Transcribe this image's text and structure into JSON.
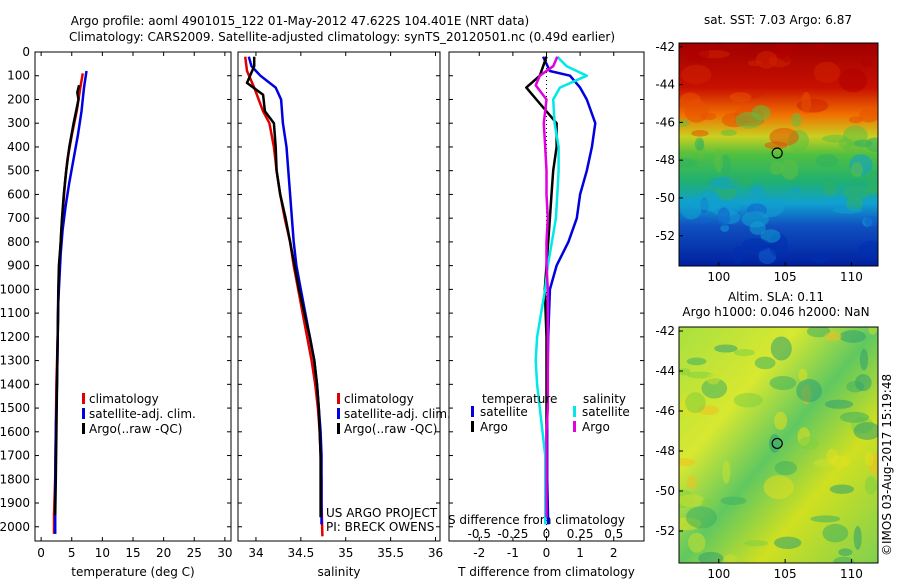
{
  "title": {
    "line1": "Argo profile: aoml 4901015_122 01-May-2012 47.622S 104.401E (NRT data)",
    "line2": "Climatology: CARS2009. Satellite-adjusted climatology: synTS_20120501.nc (0.49d earlier)"
  },
  "colors": {
    "red": "#e00000",
    "blue": "#0000e0",
    "black": "#000000",
    "cyan": "#00e8e8",
    "magenta": "#e000e0"
  },
  "chart_data": [
    {
      "id": "temperature",
      "type": "line",
      "xlabel": "temperature (deg C)",
      "ylabel": "",
      "xlim": [
        -1,
        31
      ],
      "ylim": [
        2060,
        0
      ],
      "xticks": [
        0,
        5,
        10,
        15,
        20,
        25,
        30
      ],
      "yticks": [
        0,
        100,
        200,
        300,
        400,
        500,
        600,
        700,
        800,
        900,
        1000,
        1100,
        1200,
        1300,
        1400,
        1500,
        1600,
        1700,
        1800,
        1900,
        2000
      ],
      "series": [
        {
          "name": "climatology",
          "color": "red",
          "points": [
            [
              6.8,
              90
            ],
            [
              6.4,
              150
            ],
            [
              5.8,
              250
            ],
            [
              5.0,
              350
            ],
            [
              4.3,
              450
            ],
            [
              3.9,
              550
            ],
            [
              3.6,
              650
            ],
            [
              3.3,
              750
            ],
            [
              3.1,
              850
            ],
            [
              2.9,
              950
            ],
            [
              2.8,
              1050
            ],
            [
              2.7,
              1200
            ],
            [
              2.5,
              1400
            ],
            [
              2.4,
              1600
            ],
            [
              2.3,
              1800
            ],
            [
              2.1,
              1950
            ],
            [
              2.1,
              2030
            ]
          ]
        },
        {
          "name": "satellite-adj. clim.",
          "color": "blue",
          "points": [
            [
              7.4,
              80
            ],
            [
              7.0,
              150
            ],
            [
              6.6,
              250
            ],
            [
              6.0,
              350
            ],
            [
              5.3,
              450
            ],
            [
              4.6,
              550
            ],
            [
              4.0,
              650
            ],
            [
              3.5,
              750
            ],
            [
              3.2,
              850
            ],
            [
              3.0,
              950
            ],
            [
              2.8,
              1050
            ],
            [
              2.7,
              1200
            ],
            [
              2.6,
              1400
            ],
            [
              2.4,
              1600
            ],
            [
              2.3,
              1800
            ],
            [
              2.3,
              1950
            ],
            [
              2.3,
              2030
            ]
          ]
        },
        {
          "name": "Argo(..raw -QC)",
          "color": "black",
          "points": [
            [
              6.2,
              140
            ],
            [
              5.9,
              170
            ],
            [
              6.1,
              200
            ],
            [
              5.3,
              300
            ],
            [
              4.6,
              400
            ],
            [
              4.1,
              500
            ],
            [
              3.7,
              600
            ],
            [
              3.4,
              700
            ],
            [
              3.2,
              800
            ],
            [
              2.9,
              900
            ],
            [
              2.8,
              1000
            ],
            [
              2.7,
              1200
            ],
            [
              2.6,
              1400
            ],
            [
              2.5,
              1600
            ],
            [
              2.4,
              1800
            ],
            [
              2.3,
              1950
            ]
          ]
        }
      ],
      "legend": [
        "climatology",
        "satellite-adj. clim.",
        "Argo(..raw -QC)"
      ]
    },
    {
      "id": "salinity",
      "type": "line",
      "xlabel": "salinity",
      "xlim": [
        33.8,
        36.05
      ],
      "ylim": [
        2060,
        0
      ],
      "xticks": [
        34,
        34.5,
        35,
        35.5,
        36
      ],
      "series": [
        {
          "name": "climatology",
          "color": "red",
          "points": [
            [
              33.88,
              20
            ],
            [
              33.9,
              80
            ],
            [
              33.98,
              150
            ],
            [
              34.08,
              250
            ],
            [
              34.15,
              300
            ],
            [
              34.2,
              400
            ],
            [
              34.23,
              500
            ],
            [
              34.27,
              600
            ],
            [
              34.32,
              700
            ],
            [
              34.38,
              800
            ],
            [
              34.42,
              900
            ],
            [
              34.47,
              1000
            ],
            [
              34.52,
              1100
            ],
            [
              34.57,
              1200
            ],
            [
              34.62,
              1300
            ],
            [
              34.66,
              1400
            ],
            [
              34.69,
              1500
            ],
            [
              34.71,
              1600
            ],
            [
              34.72,
              1700
            ],
            [
              34.73,
              1800
            ],
            [
              34.73,
              1900
            ],
            [
              34.74,
              2040
            ]
          ]
        },
        {
          "name": "satellite-adj. clim.",
          "color": "blue",
          "points": [
            [
              33.92,
              20
            ],
            [
              33.95,
              60
            ],
            [
              34.05,
              100
            ],
            [
              34.22,
              150
            ],
            [
              34.28,
              200
            ],
            [
              34.3,
              300
            ],
            [
              34.34,
              400
            ],
            [
              34.36,
              500
            ],
            [
              34.38,
              600
            ],
            [
              34.4,
              700
            ],
            [
              34.42,
              800
            ],
            [
              34.45,
              900
            ],
            [
              34.5,
              1000
            ],
            [
              34.55,
              1100
            ],
            [
              34.6,
              1200
            ],
            [
              34.65,
              1300
            ],
            [
              34.68,
              1400
            ],
            [
              34.7,
              1500
            ],
            [
              34.72,
              1600
            ],
            [
              34.73,
              1700
            ],
            [
              34.73,
              1800
            ],
            [
              34.73,
              1900
            ],
            [
              34.73,
              1990
            ]
          ]
        },
        {
          "name": "Argo(..raw -QC)",
          "color": "black",
          "points": [
            [
              33.98,
              20
            ],
            [
              33.98,
              60
            ],
            [
              33.9,
              130
            ],
            [
              34.08,
              180
            ],
            [
              34.1,
              250
            ],
            [
              34.2,
              300
            ],
            [
              34.22,
              400
            ],
            [
              34.23,
              500
            ],
            [
              34.27,
              600
            ],
            [
              34.33,
              700
            ],
            [
              34.38,
              800
            ],
            [
              34.43,
              900
            ],
            [
              34.48,
              1000
            ],
            [
              34.54,
              1100
            ],
            [
              34.6,
              1200
            ],
            [
              34.65,
              1300
            ],
            [
              34.68,
              1400
            ],
            [
              34.7,
              1500
            ],
            [
              34.71,
              1600
            ],
            [
              34.72,
              1700
            ],
            [
              34.72,
              1800
            ],
            [
              34.72,
              1900
            ],
            [
              34.72,
              1960
            ]
          ]
        }
      ],
      "legend": [
        "climatology",
        "satellite-adj. clim.",
        "Argo(..raw -QC)"
      ],
      "annotation": [
        "US ARGO PROJECT",
        "PI: BRECK OWENS"
      ]
    },
    {
      "id": "difference",
      "type": "line",
      "xlabel": "T difference from climatology",
      "x2label": "S difference from climatology",
      "xlim": [
        -2.9,
        2.9
      ],
      "x2lim": [
        -0.725,
        0.725
      ],
      "ylim": [
        2060,
        0
      ],
      "xticks": [
        -2,
        -1,
        0,
        1,
        2
      ],
      "x2ticks": [
        "-0.5",
        "-0.25",
        "0",
        "0.25",
        "0.5"
      ],
      "legend_headers": [
        "temperature",
        "salinity"
      ],
      "series": [
        {
          "name": "satellite",
          "group": "temperature",
          "color": "blue",
          "points": [
            [
              -0.1,
              20
            ],
            [
              0.1,
              80
            ],
            [
              0.7,
              100
            ],
            [
              1.0,
              150
            ],
            [
              1.2,
              200
            ],
            [
              1.45,
              300
            ],
            [
              1.35,
              400
            ],
            [
              1.2,
              500
            ],
            [
              1.0,
              600
            ],
            [
              0.9,
              700
            ],
            [
              0.65,
              800
            ],
            [
              0.3,
              900
            ],
            [
              0.1,
              1000
            ],
            [
              0.05,
              1200
            ],
            [
              0.02,
              1500
            ],
            [
              0.02,
              1800
            ],
            [
              0.05,
              1990
            ]
          ]
        },
        {
          "name": "Argo",
          "group": "temperature",
          "color": "black",
          "points": [
            [
              0,
              20
            ],
            [
              -0.2,
              100
            ],
            [
              -0.6,
              150
            ],
            [
              -0.3,
              200
            ],
            [
              0.3,
              300
            ],
            [
              0.3,
              400
            ],
            [
              0.2,
              500
            ],
            [
              0.15,
              600
            ],
            [
              0.1,
              700
            ],
            [
              0.05,
              800
            ],
            [
              0,
              900
            ],
            [
              -0.05,
              1000
            ],
            [
              0,
              1200
            ],
            [
              0,
              1500
            ],
            [
              0,
              1800
            ],
            [
              0,
              1950
            ]
          ]
        },
        {
          "name": "satellite",
          "group": "salinity",
          "color": "cyan",
          "points": [
            [
              0.08,
              20
            ],
            [
              0.15,
              60
            ],
            [
              0.3,
              100
            ],
            [
              0.1,
              150
            ],
            [
              0.05,
              200
            ],
            [
              0.06,
              300
            ],
            [
              0.09,
              400
            ],
            [
              0.09,
              500
            ],
            [
              0.08,
              600
            ],
            [
              0.07,
              700
            ],
            [
              0.04,
              800
            ],
            [
              0.01,
              900
            ],
            [
              -0.01,
              1000
            ],
            [
              -0.04,
              1100
            ],
            [
              -0.07,
              1200
            ],
            [
              -0.08,
              1300
            ],
            [
              -0.07,
              1400
            ],
            [
              -0.05,
              1500
            ],
            [
              -0.03,
              1600
            ],
            [
              -0.01,
              1700
            ],
            [
              -0.01,
              1800
            ],
            [
              -0.01,
              1990
            ]
          ]
        },
        {
          "name": "Argo",
          "group": "salinity",
          "color": "magenta",
          "points": [
            [
              0.08,
              20
            ],
            [
              0.05,
              60
            ],
            [
              -0.05,
              100
            ],
            [
              -0.08,
              140
            ],
            [
              0,
              200
            ],
            [
              -0.02,
              300
            ],
            [
              -0.01,
              400
            ],
            [
              0,
              500
            ],
            [
              0,
              600
            ],
            [
              0.01,
              700
            ],
            [
              0,
              800
            ],
            [
              0,
              900
            ],
            [
              0.01,
              1000
            ],
            [
              0.01,
              1100
            ],
            [
              0.01,
              1200
            ],
            [
              0.01,
              1300
            ],
            [
              0.01,
              1400
            ],
            [
              0.01,
              1500
            ],
            [
              0,
              1600
            ],
            [
              0,
              1700
            ],
            [
              0,
              1800
            ],
            [
              0,
              1960
            ]
          ]
        }
      ],
      "legend": [
        [
          "satellite",
          "satellite"
        ],
        [
          "Argo",
          "Argo"
        ]
      ]
    },
    {
      "id": "sst-map",
      "type": "heatmap",
      "title": "sat. SST: 7.03 Argo: 6.87",
      "xlim": [
        97,
        112
      ],
      "ylim": [
        -53.6,
        -41.8
      ],
      "xticks": [
        100,
        105,
        110
      ],
      "yticks": [
        -42,
        -44,
        -46,
        -48,
        -50,
        -52
      ],
      "marker": [
        104.401,
        -47.622
      ]
    },
    {
      "id": "sla-map",
      "type": "heatmap",
      "title": "Altim. SLA: 0.11",
      "subtitle": "Argo h1000: 0.046 h2000: NaN",
      "xlim": [
        97,
        112
      ],
      "ylim": [
        -53.6,
        -41.8
      ],
      "xticks": [
        100,
        105,
        110
      ],
      "yticks": [
        -42,
        -44,
        -46,
        -48,
        -50,
        -52
      ],
      "marker": [
        104.401,
        -47.622
      ]
    }
  ],
  "footer": {
    "credit": "©IMOS 03-Aug-2017 15:19:48"
  }
}
